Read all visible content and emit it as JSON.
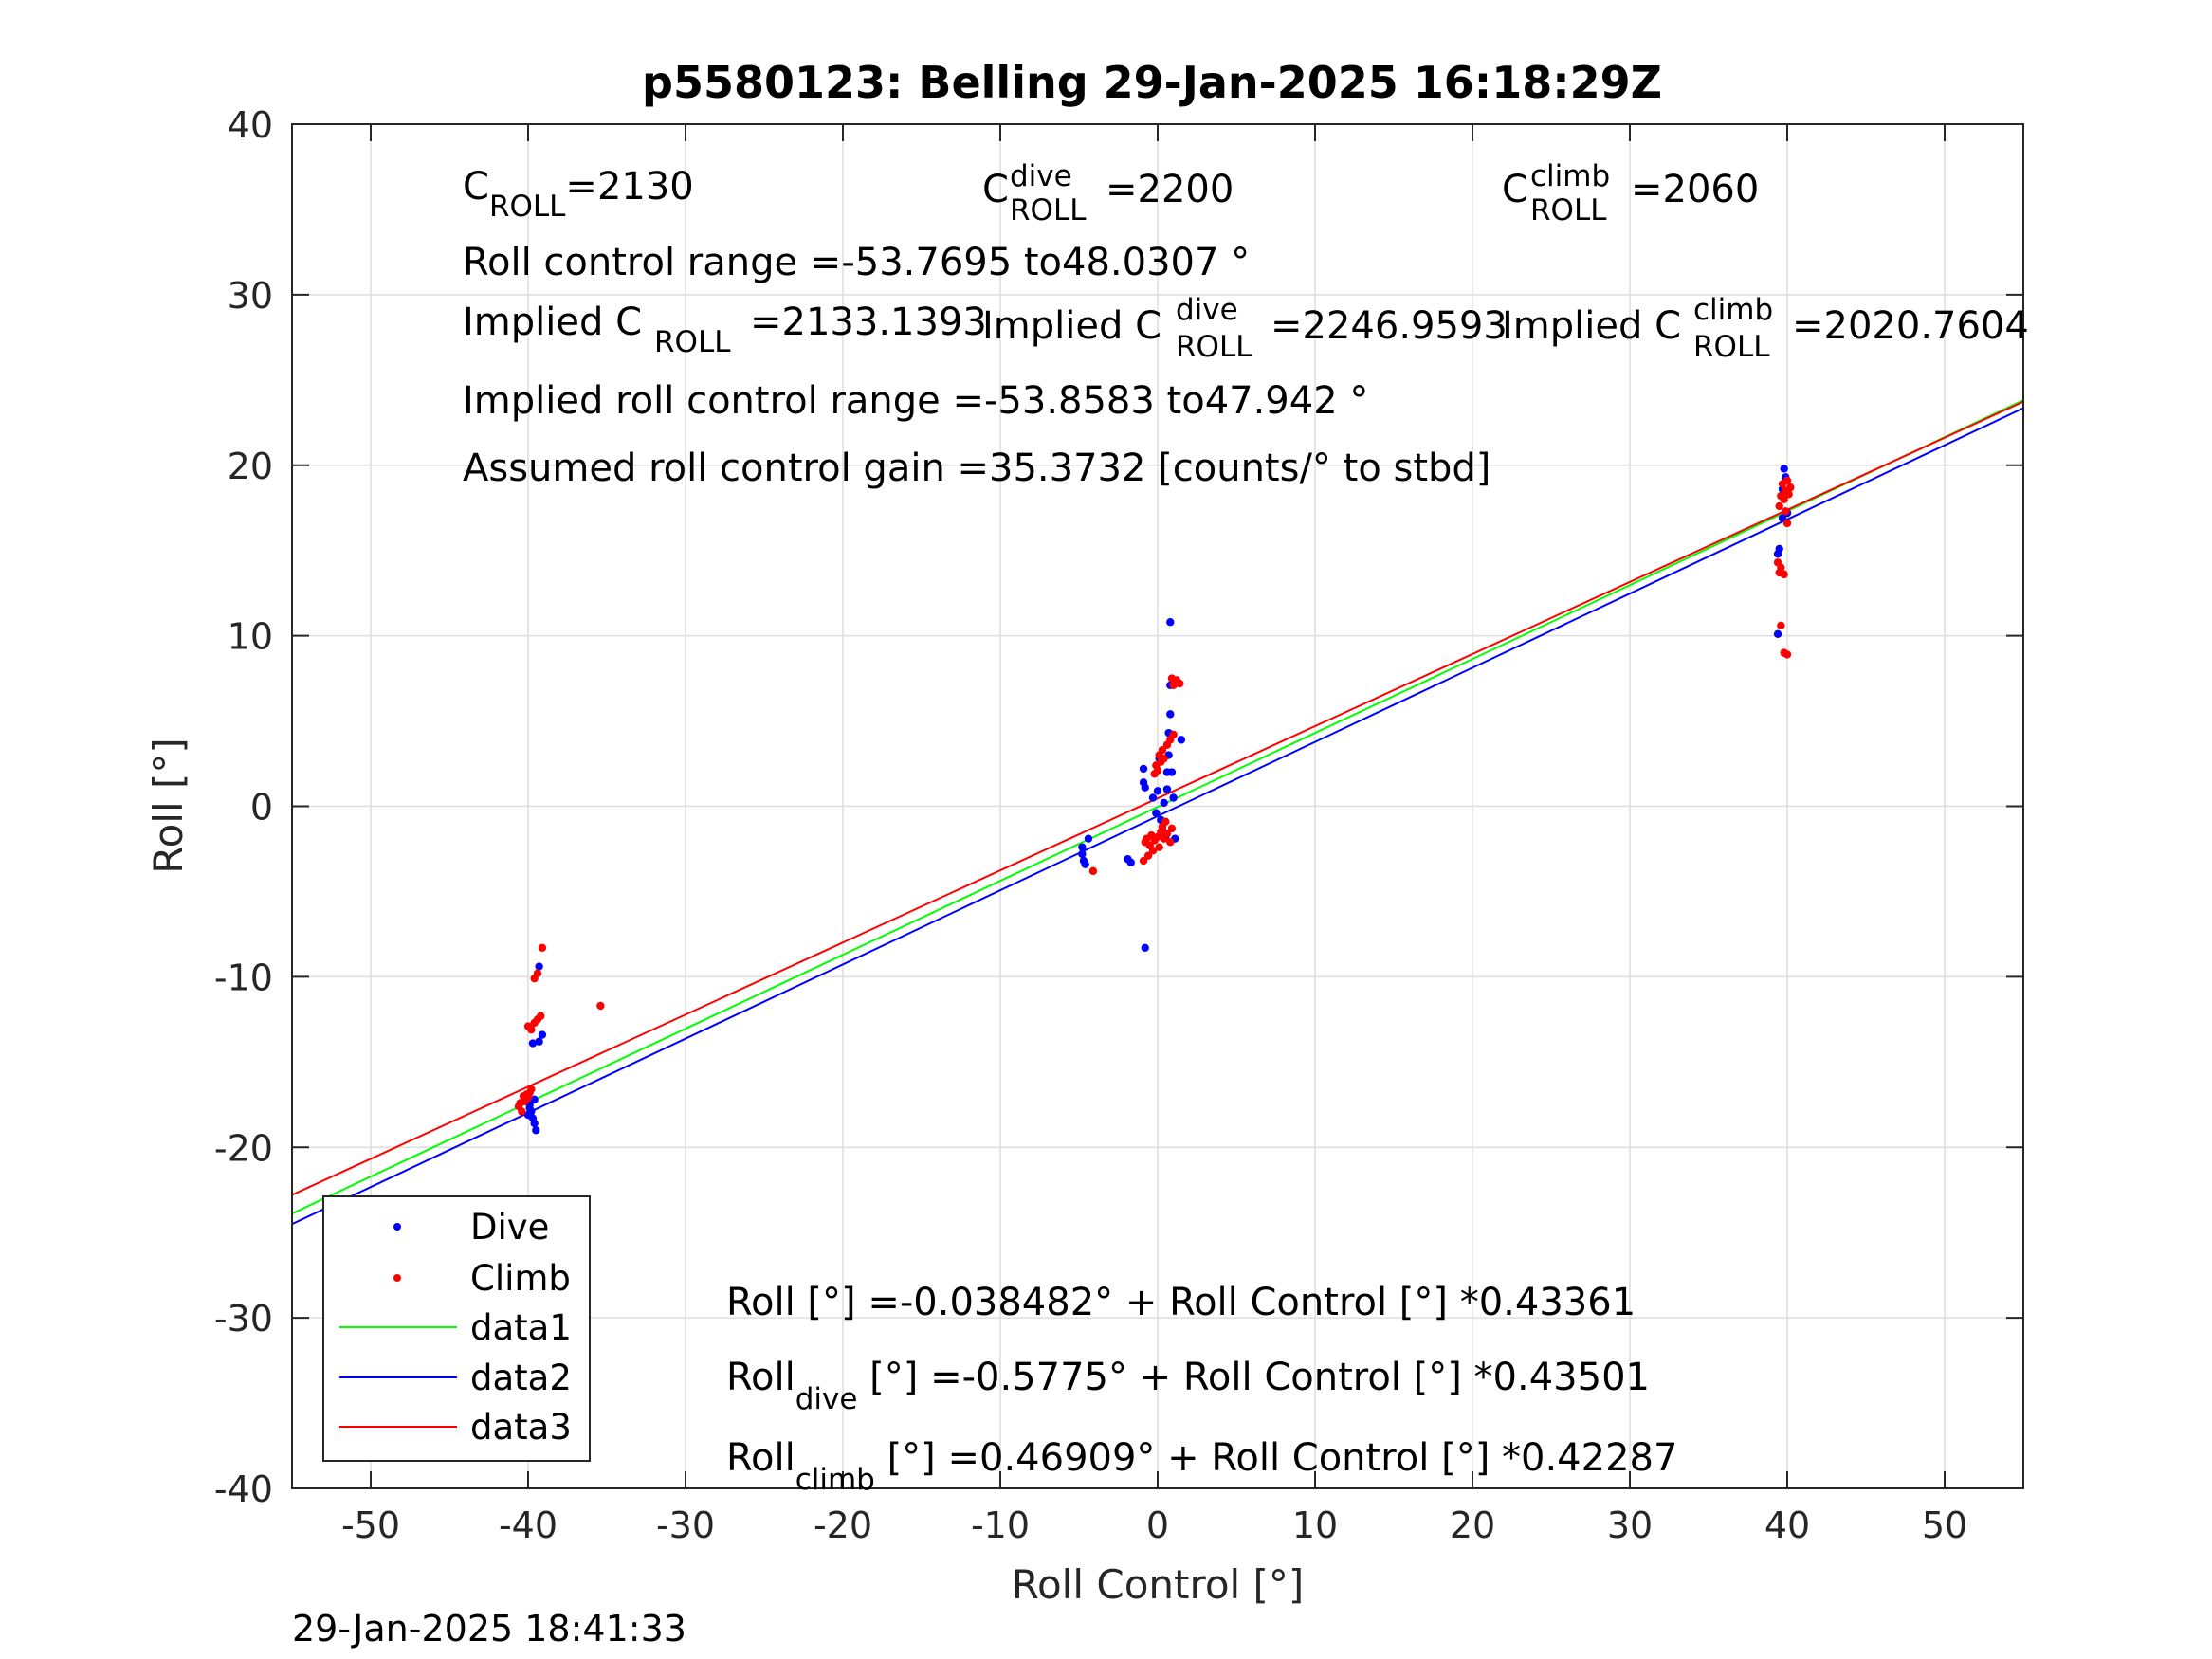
{
  "chart_data": {
    "type": "scatter",
    "title": "p5580123: Belling 29-Jan-2025 16:18:29Z",
    "xlabel": "Roll Control [°]",
    "ylabel": "Roll [°]",
    "xlim": [
      -55,
      55
    ],
    "ylim": [
      -40,
      40
    ],
    "xticks": [
      -50,
      -40,
      -30,
      -20,
      -10,
      0,
      10,
      20,
      30,
      40,
      50
    ],
    "yticks": [
      -40,
      -30,
      -20,
      -10,
      0,
      10,
      20,
      30,
      40
    ],
    "xtick_labels": [
      "-50",
      "-40",
      "-30",
      "-20",
      "-10",
      "0",
      "10",
      "20",
      "30",
      "40",
      "50"
    ],
    "ytick_labels": [
      "-40",
      "-30",
      "-20",
      "-10",
      "0",
      "10",
      "20",
      "30",
      "40"
    ],
    "grid": true,
    "legend_position": "bottom-left",
    "colors": {
      "dive": "#0000ff",
      "climb": "#ff0000",
      "data1": "#00ff00",
      "data2": "#0000ff",
      "data3": "#ff0000"
    },
    "series": [
      {
        "name": "Dive",
        "kind": "points",
        "color": "#0000ff",
        "points": [
          [
            -39.9,
            -17.5
          ],
          [
            -39.8,
            -17.9
          ],
          [
            -39.7,
            -18.3
          ],
          [
            -39.6,
            -18.6
          ],
          [
            -39.5,
            -19.0
          ],
          [
            -40.0,
            -18.1
          ],
          [
            -39.9,
            -17.7
          ],
          [
            -39.6,
            -17.2
          ],
          [
            -39.3,
            -13.8
          ],
          [
            -39.1,
            -13.4
          ],
          [
            -39.7,
            -13.9
          ],
          [
            -39.3,
            -9.4
          ],
          [
            -4.8,
            -2.4
          ],
          [
            -4.8,
            -2.8
          ],
          [
            -4.7,
            -3.2
          ],
          [
            -4.6,
            -3.4
          ],
          [
            -4.4,
            -1.9
          ],
          [
            -1.9,
            -3.1
          ],
          [
            -1.7,
            -3.3
          ],
          [
            -0.8,
            -8.3
          ],
          [
            -0.9,
            1.4
          ],
          [
            -0.8,
            1.1
          ],
          [
            -0.9,
            2.2
          ],
          [
            -0.3,
            0.5
          ],
          [
            -0.1,
            -0.4
          ],
          [
            0.0,
            0.9
          ],
          [
            0.2,
            -0.8
          ],
          [
            0.3,
            -1.4
          ],
          [
            0.4,
            0.2
          ],
          [
            0.5,
            -1.8
          ],
          [
            0.6,
            1.0
          ],
          [
            0.6,
            2.0
          ],
          [
            0.7,
            3.0
          ],
          [
            0.7,
            4.3
          ],
          [
            0.8,
            5.4
          ],
          [
            0.8,
            7.1
          ],
          [
            0.8,
            10.8
          ],
          [
            0.9,
            2.0
          ],
          [
            1.0,
            0.5
          ],
          [
            1.1,
            -1.9
          ],
          [
            1.5,
            3.9
          ],
          [
            0.1,
            2.8
          ],
          [
            39.4,
            10.1
          ],
          [
            39.4,
            14.8
          ],
          [
            39.5,
            15.1
          ],
          [
            39.7,
            18.6
          ],
          [
            39.8,
            19.8
          ],
          [
            39.9,
            19.3
          ],
          [
            40.0,
            17.2
          ],
          [
            39.7,
            16.9
          ]
        ]
      },
      {
        "name": "Climb",
        "kind": "points",
        "color": "#ff0000",
        "points": [
          [
            -40.6,
            -17.6
          ],
          [
            -40.4,
            -17.9
          ],
          [
            -40.2,
            -17.3
          ],
          [
            -40.0,
            -17.1
          ],
          [
            -39.9,
            -16.8
          ],
          [
            -40.1,
            -16.9
          ],
          [
            -39.8,
            -16.6
          ],
          [
            -40.3,
            -17.0
          ],
          [
            -40.5,
            -17.4
          ],
          [
            -40.0,
            -12.9
          ],
          [
            -39.8,
            -13.1
          ],
          [
            -39.6,
            -12.7
          ],
          [
            -39.4,
            -12.5
          ],
          [
            -39.2,
            -12.3
          ],
          [
            -39.6,
            -10.1
          ],
          [
            -39.4,
            -9.8
          ],
          [
            -39.1,
            -8.3
          ],
          [
            -35.4,
            -11.7
          ],
          [
            -4.1,
            -3.8
          ],
          [
            -0.9,
            -3.2
          ],
          [
            -0.8,
            -2.1
          ],
          [
            -0.7,
            -1.9
          ],
          [
            -0.6,
            -2.9
          ],
          [
            -0.5,
            -2.3
          ],
          [
            -0.4,
            -1.7
          ],
          [
            -0.3,
            -2.6
          ],
          [
            -0.2,
            -2.0
          ],
          [
            0.0,
            -1.8
          ],
          [
            0.1,
            -2.4
          ],
          [
            0.2,
            -1.5
          ],
          [
            0.3,
            -1.2
          ],
          [
            0.4,
            -1.9
          ],
          [
            0.5,
            -0.9
          ],
          [
            0.6,
            -1.6
          ],
          [
            0.8,
            -2.1
          ],
          [
            0.9,
            -1.3
          ],
          [
            -0.2,
            1.9
          ],
          [
            -0.1,
            2.4
          ],
          [
            0.0,
            2.1
          ],
          [
            0.1,
            3.0
          ],
          [
            0.2,
            2.6
          ],
          [
            0.3,
            3.3
          ],
          [
            0.4,
            2.8
          ],
          [
            0.6,
            3.6
          ],
          [
            0.8,
            3.9
          ],
          [
            1.0,
            4.2
          ],
          [
            1.0,
            7.1
          ],
          [
            1.2,
            7.4
          ],
          [
            1.4,
            7.2
          ],
          [
            0.9,
            7.5
          ],
          [
            39.4,
            14.3
          ],
          [
            39.5,
            13.7
          ],
          [
            39.6,
            14.0
          ],
          [
            39.8,
            13.6
          ],
          [
            39.6,
            10.6
          ],
          [
            39.8,
            9.0
          ],
          [
            40.0,
            8.9
          ],
          [
            39.5,
            17.6
          ],
          [
            39.6,
            18.2
          ],
          [
            39.7,
            18.9
          ],
          [
            39.8,
            18.0
          ],
          [
            39.9,
            18.5
          ],
          [
            40.0,
            19.1
          ],
          [
            40.1,
            18.3
          ],
          [
            40.2,
            18.7
          ],
          [
            39.9,
            17.3
          ],
          [
            40.0,
            16.6
          ]
        ]
      },
      {
        "name": "data1",
        "kind": "line",
        "color": "#00ff00",
        "intercept": -0.038482,
        "slope": 0.43361
      },
      {
        "name": "data2",
        "kind": "line",
        "color": "#0000ff",
        "intercept": -0.5775,
        "slope": 0.43501
      },
      {
        "name": "data3",
        "kind": "line",
        "color": "#ff0000",
        "intercept": 0.46909,
        "slope": 0.42287
      }
    ],
    "annotations": {
      "croll": {
        "base": "C",
        "sub": "ROLL",
        "value": "=2130"
      },
      "croll_dive": {
        "base": "C",
        "sup": "dive",
        "sub": "ROLL",
        "value": "=2200"
      },
      "croll_climb": {
        "base": "C",
        "sup": "climb",
        "sub": "ROLL",
        "value": "=2060"
      },
      "roll_range": "Roll control range =-53.7695 to48.0307 °",
      "implied_croll": {
        "prefix": "Implied C",
        "sub": "ROLL",
        "value": "=2133.1393"
      },
      "implied_croll_dive": {
        "prefix": "Implied C",
        "sup": "dive",
        "sub": "ROLL",
        "value": "=2246.9593"
      },
      "implied_croll_climb": {
        "prefix": "Implied C",
        "sup": "climb",
        "sub": "ROLL",
        "value": "=2020.7604"
      },
      "implied_range": "Implied roll control range =-53.8583 to47.942 °",
      "gain": "Assumed roll control gain =35.3732 [counts/° to stbd]",
      "fit_all": "Roll [°] =-0.038482° + Roll Control [°] *0.43361",
      "fit_dive": {
        "base": "Roll",
        "sub": "dive",
        "rest": " [°] =-0.5775° + Roll Control [°] *0.43501"
      },
      "fit_climb": {
        "base": "Roll",
        "sub": "climb",
        "rest": " [°] =0.46909° + Roll Control [°] *0.42287"
      }
    },
    "timestamp": "29-Jan-2025 18:41:33"
  }
}
